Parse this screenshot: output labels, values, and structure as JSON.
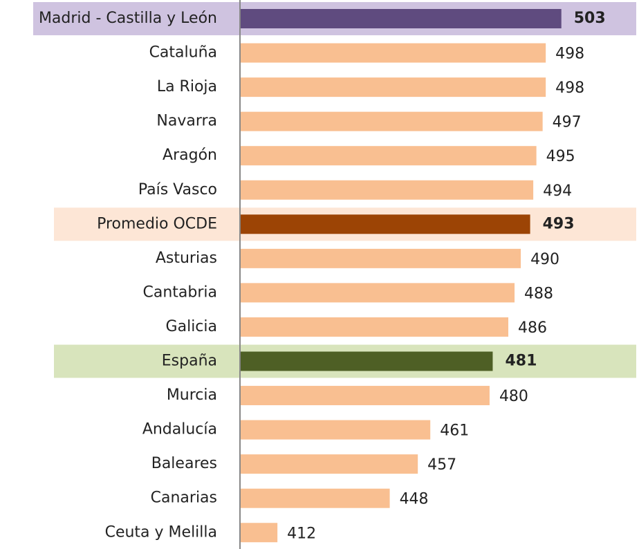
{
  "chart_data": {
    "type": "hbar",
    "categories": [
      "Madrid - Castilla y León",
      "Cataluña",
      "La Rioja",
      "Navarra",
      "Aragón",
      "País Vasco",
      "Promedio OCDE",
      "Asturias",
      "Cantabria",
      "Galicia",
      "España",
      "Murcia",
      "Andalucía",
      "Baleares",
      "Canarias",
      "Ceuta y Melilla"
    ],
    "values": [
      503,
      498,
      498,
      497,
      495,
      494,
      493,
      490,
      488,
      486,
      481,
      480,
      461,
      457,
      448,
      412
    ],
    "colors": [
      "#5f4b7f",
      "#f9bf91",
      "#f9bf91",
      "#f9bf91",
      "#f9bf91",
      "#f9bf91",
      "#9c4405",
      "#f9bf91",
      "#f9bf91",
      "#f9bf91",
      "#4e5f25",
      "#f9bf91",
      "#f9bf91",
      "#f9bf91",
      "#f9bf91",
      "#f9bf91"
    ],
    "row_highlights": [
      "#cfc3e0",
      null,
      null,
      null,
      null,
      null,
      "#fde6d6",
      null,
      null,
      null,
      "#d8e4bc",
      null,
      null,
      null,
      null,
      null
    ],
    "xlim": [
      400,
      527
    ]
  }
}
